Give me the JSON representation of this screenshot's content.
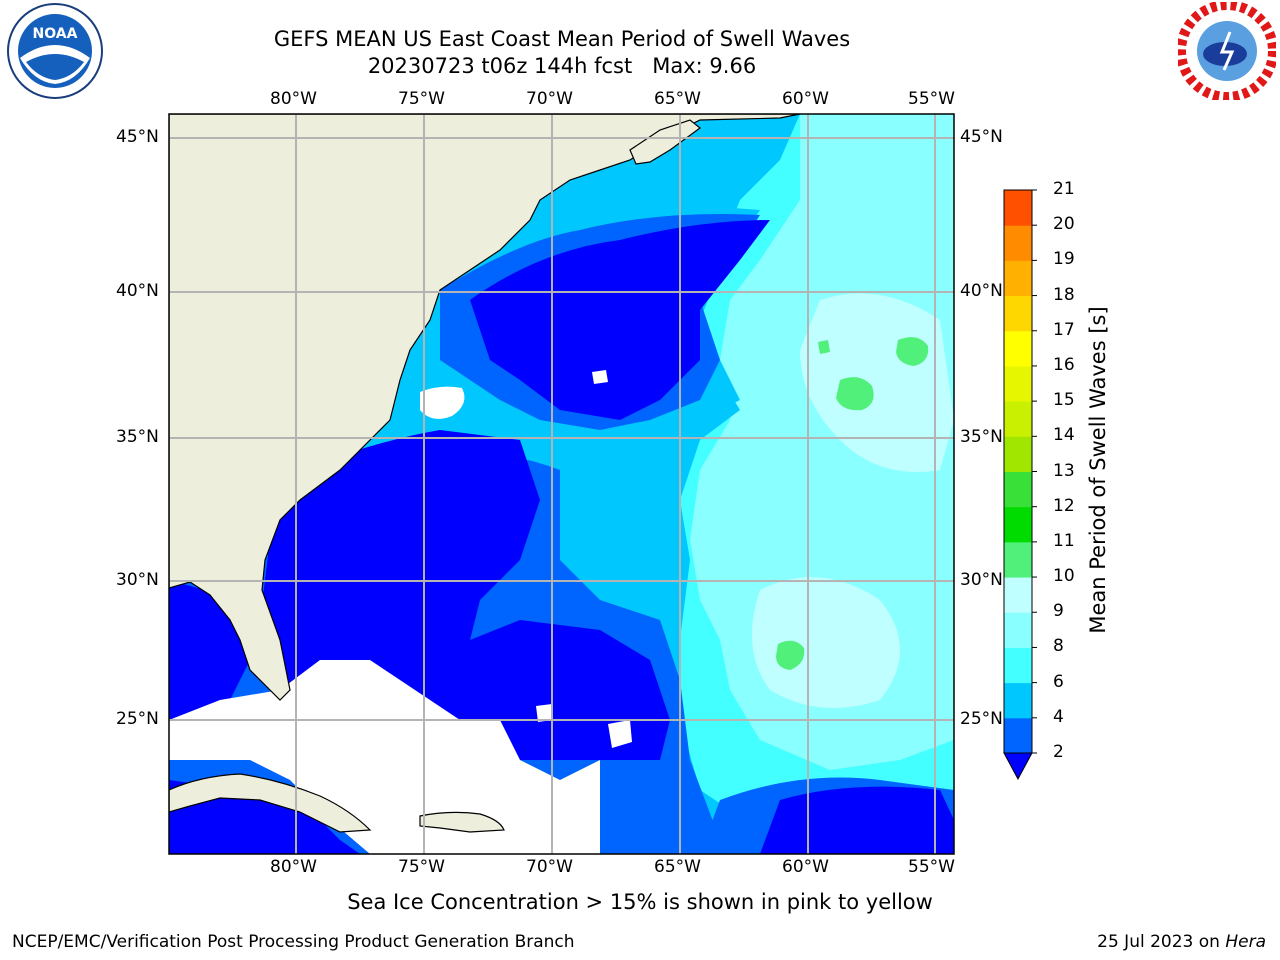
{
  "header": {
    "title_line1": "GEFS MEAN US East Coast Mean Period of Swell Waves",
    "title_line2": "20230723 t06z 144h fcst",
    "max_label": "Max: 9.66"
  },
  "logos": {
    "left": "noara-logo-icon",
    "right": "national-weather-service-logo-icon"
  },
  "map": {
    "lon_labels_top": [
      "80°W",
      "75°W",
      "70°W",
      "65°W",
      "60°W",
      "55°W"
    ],
    "lon_labels_bottom": [
      "80°W",
      "75°W",
      "70°W",
      "65°W",
      "60°W",
      "55°W"
    ],
    "lat_labels_left": [
      "45°N",
      "40°N",
      "35°N",
      "30°N",
      "25°N"
    ],
    "lat_labels_right": [
      "45°N",
      "40°N",
      "35°N",
      "30°N",
      "25°N"
    ],
    "extent": {
      "lon_min": -85,
      "lon_max": -54.3,
      "lat_min": 20.5,
      "lat_max": 46.5
    },
    "land_color": "#eeeedd",
    "no_data_color": "#ffffff"
  },
  "colorbar": {
    "title": "Mean Period of Swell Waves [s]",
    "tick_labels": [
      "2",
      "4",
      "6",
      "8",
      "9",
      "10",
      "11",
      "12",
      "13",
      "14",
      "15",
      "16",
      "17",
      "18",
      "19",
      "20",
      "21"
    ],
    "colors": [
      "#0064ff",
      "#00c8ff",
      "#44ffff",
      "#8affff",
      "#c0ffff",
      "#50f07a",
      "#00dc00",
      "#38e038",
      "#a0e600",
      "#c8f000",
      "#e6f500",
      "#ffff00",
      "#ffd700",
      "#ffb000",
      "#ff8c00",
      "#ff5000",
      "#ff2000",
      "#ff0000"
    ],
    "under_color": "#0000ff",
    "note": "levels 2 to 21 s, extend min"
  },
  "note": "Sea Ice Concentration > 15% is shown in pink to yellow",
  "footer": {
    "left": "NCEP/EMC/Verification Post Processing Product Generation Branch",
    "right_date": "25 Jul 2023 on ",
    "right_host": "Hera"
  }
}
